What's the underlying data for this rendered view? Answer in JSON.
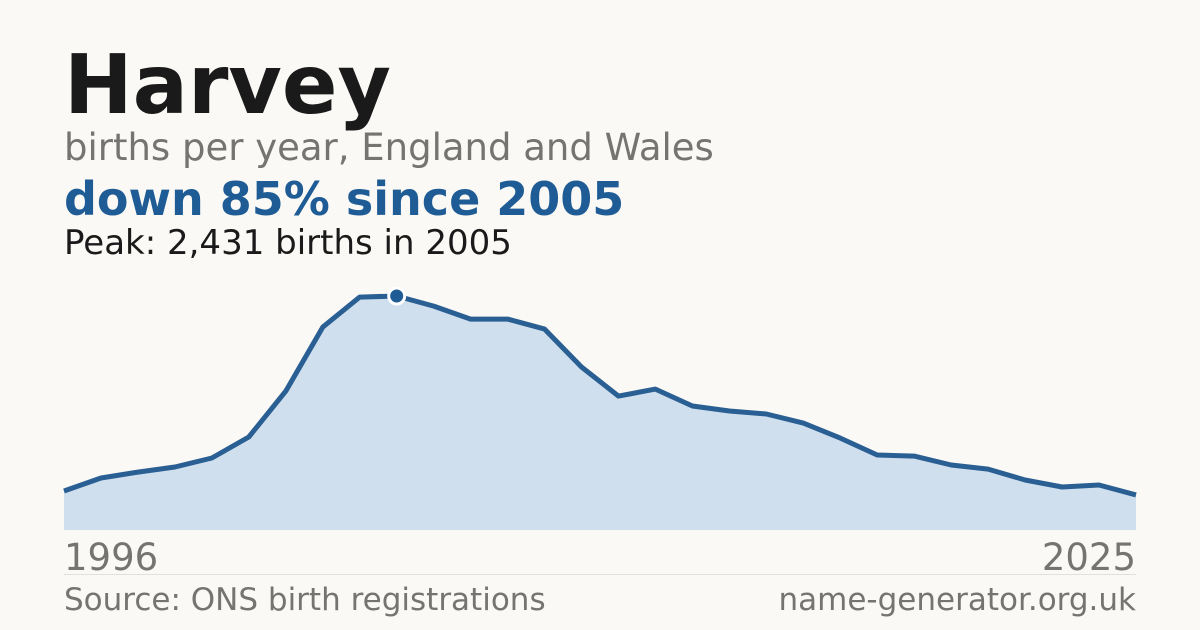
{
  "chart_data": {
    "type": "area",
    "title": "Harvey",
    "subtitle": "births per year, England and Wales",
    "headline": "down 85% since 2005",
    "annotation": "Peak: 2,431 births in 2005",
    "source": "Source: ONS birth registrations",
    "site": "name-generator.org.uk",
    "x": [
      1996,
      1997,
      1998,
      1999,
      2000,
      2001,
      2002,
      2003,
      2004,
      2005,
      2006,
      2007,
      2008,
      2009,
      2010,
      2011,
      2012,
      2013,
      2014,
      2015,
      2016,
      2017,
      2018,
      2019,
      2020,
      2021,
      2022,
      2023,
      2024,
      2025
    ],
    "values": [
      405,
      540,
      602,
      654,
      748,
      966,
      1443,
      2108,
      2420,
      2431,
      2326,
      2191,
      2191,
      2087,
      1693,
      1391,
      1464,
      1288,
      1236,
      1205,
      1111,
      955,
      779,
      768,
      675,
      633,
      519,
      447,
      467,
      365
    ],
    "xlim": [
      1996,
      2025
    ],
    "xticks": [
      1996,
      2025
    ],
    "highlight_index": 9,
    "color": "#2a5f93",
    "fill": "#d0dfee"
  }
}
